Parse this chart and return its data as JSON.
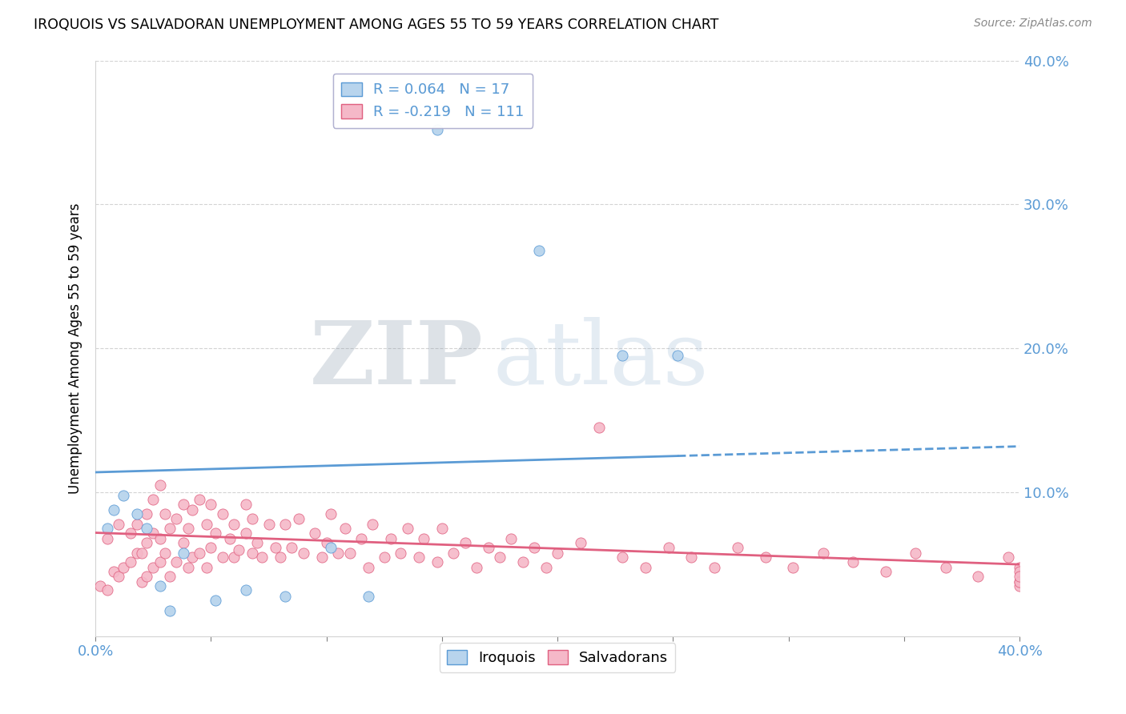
{
  "title": "IROQUOIS VS SALVADORAN UNEMPLOYMENT AMONG AGES 55 TO 59 YEARS CORRELATION CHART",
  "source": "Source: ZipAtlas.com",
  "ylabel": "Unemployment Among Ages 55 to 59 years",
  "watermark_zip": "ZIP",
  "watermark_atlas": "atlas",
  "legend_iroquois": "R = 0.064   N = 17",
  "legend_salvadoran": "R = -0.219   N = 111",
  "iroquois_color": "#b8d4ed",
  "salvadoran_color": "#f5b8c8",
  "iroquois_line_color": "#5b9bd5",
  "salvadoran_line_color": "#e06080",
  "xlim": [
    0.0,
    0.4
  ],
  "ylim": [
    0.0,
    0.4
  ],
  "iroq_line_x0": 0.0,
  "iroq_line_y0": 0.114,
  "iroq_line_x1": 0.4,
  "iroq_line_y1": 0.132,
  "salv_line_x0": 0.0,
  "salv_line_y0": 0.072,
  "salv_line_x1": 0.4,
  "salv_line_y1": 0.05,
  "iroquois_x": [
    0.005,
    0.008,
    0.012,
    0.018,
    0.022,
    0.028,
    0.032,
    0.038,
    0.052,
    0.065,
    0.082,
    0.102,
    0.118,
    0.148,
    0.192,
    0.228,
    0.252
  ],
  "iroquois_y": [
    0.075,
    0.088,
    0.098,
    0.085,
    0.075,
    0.035,
    0.018,
    0.058,
    0.025,
    0.032,
    0.028,
    0.062,
    0.028,
    0.352,
    0.268,
    0.195,
    0.195
  ],
  "salvadoran_x": [
    0.002,
    0.005,
    0.005,
    0.008,
    0.01,
    0.01,
    0.012,
    0.015,
    0.015,
    0.018,
    0.018,
    0.02,
    0.02,
    0.022,
    0.022,
    0.022,
    0.025,
    0.025,
    0.025,
    0.028,
    0.028,
    0.028,
    0.03,
    0.03,
    0.032,
    0.032,
    0.035,
    0.035,
    0.038,
    0.038,
    0.04,
    0.04,
    0.042,
    0.042,
    0.045,
    0.045,
    0.048,
    0.048,
    0.05,
    0.05,
    0.052,
    0.055,
    0.055,
    0.058,
    0.06,
    0.06,
    0.062,
    0.065,
    0.065,
    0.068,
    0.068,
    0.07,
    0.072,
    0.075,
    0.078,
    0.08,
    0.082,
    0.085,
    0.088,
    0.09,
    0.095,
    0.098,
    0.1,
    0.102,
    0.105,
    0.108,
    0.11,
    0.115,
    0.118,
    0.12,
    0.125,
    0.128,
    0.132,
    0.135,
    0.14,
    0.142,
    0.148,
    0.15,
    0.155,
    0.16,
    0.165,
    0.17,
    0.175,
    0.18,
    0.185,
    0.19,
    0.195,
    0.2,
    0.21,
    0.218,
    0.228,
    0.238,
    0.248,
    0.258,
    0.268,
    0.278,
    0.29,
    0.302,
    0.315,
    0.328,
    0.342,
    0.355,
    0.368,
    0.382,
    0.395,
    0.4,
    0.4,
    0.4,
    0.4,
    0.4,
    0.4
  ],
  "salvadoran_y": [
    0.035,
    0.032,
    0.068,
    0.045,
    0.042,
    0.078,
    0.048,
    0.052,
    0.072,
    0.058,
    0.078,
    0.038,
    0.058,
    0.042,
    0.065,
    0.085,
    0.048,
    0.072,
    0.095,
    0.052,
    0.068,
    0.105,
    0.058,
    0.085,
    0.042,
    0.075,
    0.052,
    0.082,
    0.065,
    0.092,
    0.048,
    0.075,
    0.055,
    0.088,
    0.058,
    0.095,
    0.048,
    0.078,
    0.062,
    0.092,
    0.072,
    0.055,
    0.085,
    0.068,
    0.055,
    0.078,
    0.06,
    0.072,
    0.092,
    0.058,
    0.082,
    0.065,
    0.055,
    0.078,
    0.062,
    0.055,
    0.078,
    0.062,
    0.082,
    0.058,
    0.072,
    0.055,
    0.065,
    0.085,
    0.058,
    0.075,
    0.058,
    0.068,
    0.048,
    0.078,
    0.055,
    0.068,
    0.058,
    0.075,
    0.055,
    0.068,
    0.052,
    0.075,
    0.058,
    0.065,
    0.048,
    0.062,
    0.055,
    0.068,
    0.052,
    0.062,
    0.048,
    0.058,
    0.065,
    0.145,
    0.055,
    0.048,
    0.062,
    0.055,
    0.048,
    0.062,
    0.055,
    0.048,
    0.058,
    0.052,
    0.045,
    0.058,
    0.048,
    0.042,
    0.055,
    0.038,
    0.048,
    0.035,
    0.045,
    0.038,
    0.042
  ]
}
